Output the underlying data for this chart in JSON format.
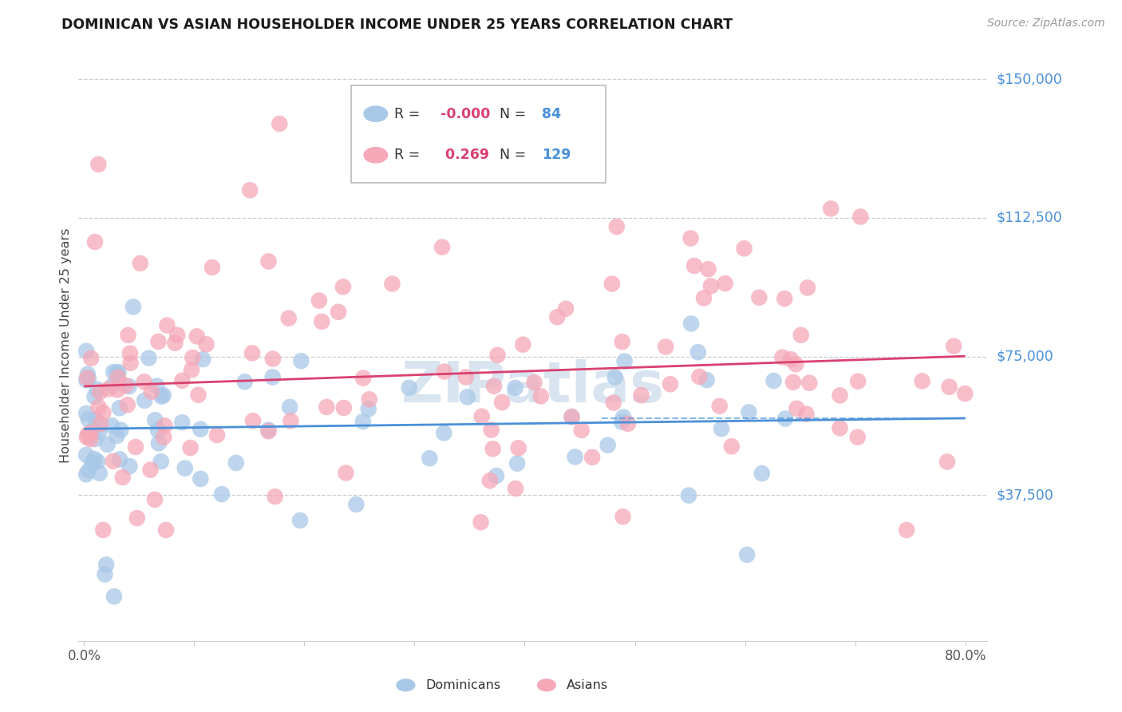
{
  "title": "DOMINICAN VS ASIAN HOUSEHOLDER INCOME UNDER 25 YEARS CORRELATION CHART",
  "source": "Source: ZipAtlas.com",
  "ylabel": "Householder Income Under 25 years",
  "background_color": "#ffffff",
  "grid_color": "#cccccc",
  "dominican_color": "#a8c8e8",
  "asian_color": "#f5a8b8",
  "dominican_line_color": "#4a90d9",
  "asian_line_color": "#d94070",
  "ytick_values": [
    37500,
    75000,
    112500,
    150000
  ],
  "ytick_labels": [
    "$37,500",
    "$75,000",
    "$112,500",
    "$150,000"
  ],
  "xtick_values": [
    0.0,
    0.1,
    0.2,
    0.3,
    0.4,
    0.5,
    0.6,
    0.7,
    0.8
  ],
  "watermark": "ZIPatlas",
  "watermark_color": "#d8e4f0",
  "title_color": "#1a1a1a",
  "source_color": "#999999",
  "label_color": "#4a90d9",
  "axis_label_color": "#555555",
  "legend_R_dom": "-0.000",
  "legend_N_dom": "84",
  "legend_R_asian": "0.269",
  "legend_N_asian": "129",
  "R_color": "#d94070",
  "N_color": "#4a90d9"
}
